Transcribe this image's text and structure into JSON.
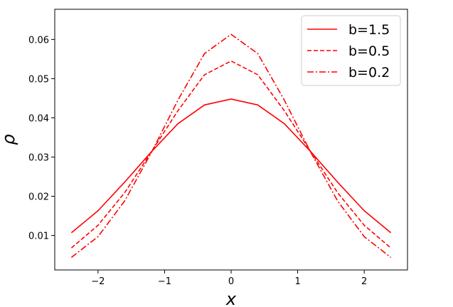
{
  "chart_data": {
    "type": "line",
    "title": "",
    "xlabel": "x",
    "ylabel": "ρ",
    "xlim": [
      -2.65,
      2.65
    ],
    "ylim": [
      0.0012,
      0.0677
    ],
    "xticks": [
      -2,
      -1,
      0,
      1,
      2
    ],
    "xtick_labels": [
      "−2",
      "−1",
      "0",
      "1",
      "2"
    ],
    "yticks": [
      0.01,
      0.02,
      0.03,
      0.04,
      0.05,
      0.06
    ],
    "ytick_labels": [
      "0.01",
      "0.02",
      "0.03",
      "0.04",
      "0.05",
      "0.06"
    ],
    "grid": false,
    "legend_position": "upper right",
    "x": [
      -2.4,
      -2.0,
      -1.6,
      -1.2,
      -0.8,
      -0.4,
      0.0,
      0.4,
      0.8,
      1.2,
      1.6,
      2.0,
      2.4
    ],
    "series": [
      {
        "name": "b=1.5",
        "color": "#ff0000",
        "linestyle": "solid",
        "values": [
          0.0107,
          0.0163,
          0.0236,
          0.0313,
          0.0385,
          0.0433,
          0.0448,
          0.0433,
          0.0385,
          0.0313,
          0.0236,
          0.0163,
          0.0107
        ]
      },
      {
        "name": "b=0.5",
        "color": "#ff0000",
        "linestyle": "dashed",
        "values": [
          0.0068,
          0.0126,
          0.0209,
          0.0313,
          0.0418,
          0.051,
          0.0545,
          0.051,
          0.0418,
          0.0313,
          0.0209,
          0.0126,
          0.0068
        ]
      },
      {
        "name": "b=0.2",
        "color": "#ff0000",
        "linestyle": "dashdot",
        "values": [
          0.0044,
          0.0097,
          0.0188,
          0.0311,
          0.0445,
          0.0564,
          0.0613,
          0.0564,
          0.0445,
          0.0311,
          0.0188,
          0.0097,
          0.0044
        ]
      }
    ]
  }
}
